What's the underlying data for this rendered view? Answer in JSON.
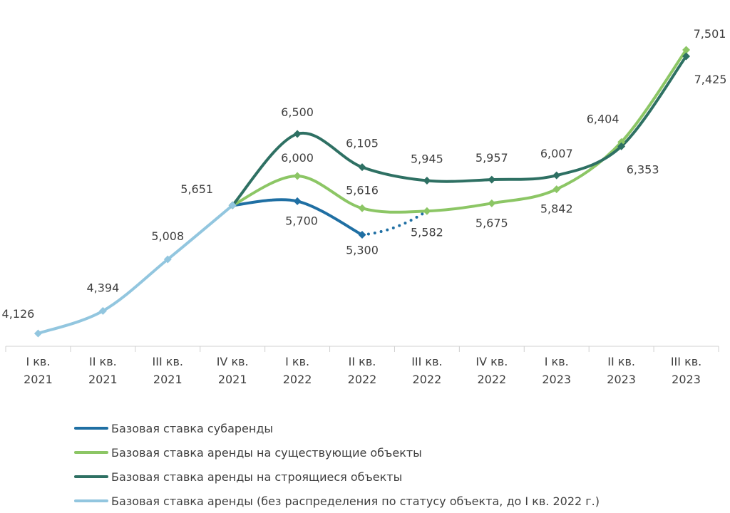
{
  "chart_data": {
    "type": "line",
    "categories": [
      [
        "I кв.",
        "2021"
      ],
      [
        "II кв.",
        "2021"
      ],
      [
        "III кв.",
        "2021"
      ],
      [
        "IV кв.",
        "2021"
      ],
      [
        "I кв.",
        "2022"
      ],
      [
        "II кв.",
        "2022"
      ],
      [
        "III кв.",
        "2022"
      ],
      [
        "IV кв.",
        "2022"
      ],
      [
        "I кв.",
        "2023"
      ],
      [
        "II кв.",
        "2023"
      ],
      [
        "III кв.",
        "2023"
      ]
    ],
    "ylim": [
      3900,
      7700
    ],
    "series": [
      {
        "name": "Базовая ставка аренды (без распределения по статусу объекта, до I кв. 2022 г.)",
        "color": "#92c6df",
        "values": [
          4126,
          4394,
          5008,
          5651,
          null,
          null,
          null,
          null,
          null,
          null,
          null
        ],
        "labels": [
          "4,126",
          "4,394",
          "5,008",
          "5,651",
          null,
          null,
          null,
          null,
          null,
          null,
          null
        ]
      },
      {
        "name": "Базовая ставка субаренды",
        "color": "#1f6fa3",
        "values": [
          null,
          null,
          null,
          5651,
          5700,
          5300,
          null,
          null,
          null,
          null,
          null
        ],
        "labels": [
          null,
          null,
          null,
          null,
          "5,700",
          "5,300",
          null,
          null,
          null,
          null,
          null
        ],
        "dotted_to": {
          "index": 6,
          "value": 5582
        }
      },
      {
        "name": "Базовая ставка аренды на существующие объекты",
        "color": "#8cc665",
        "values": [
          null,
          null,
          null,
          5651,
          6000,
          5616,
          5582,
          5675,
          5842,
          6404,
          7501
        ],
        "labels": [
          null,
          null,
          null,
          null,
          "6,000",
          "5,616",
          "5,582",
          "5,675",
          "5,842",
          "6,404",
          "7,501"
        ]
      },
      {
        "name": "Базовая ставка аренды на строящиеся объекты",
        "color": "#2e7063",
        "values": [
          null,
          null,
          null,
          5651,
          6500,
          6105,
          5945,
          5957,
          6007,
          6353,
          7425
        ],
        "labels": [
          null,
          null,
          null,
          null,
          "6,500",
          "6,105",
          "5,945",
          "5,957",
          "6,007",
          "6,353",
          "7,425"
        ]
      }
    ],
    "legend": [
      {
        "label": "Базовая ставка субаренды",
        "color": "#1f6fa3"
      },
      {
        "label": "Базовая ставка аренды на существующие объекты",
        "color": "#8cc665"
      },
      {
        "label": "Базовая ставка аренды на строящиеся объекты",
        "color": "#2e7063"
      },
      {
        "label": "Базовая ставка аренды (без распределения по статусу объекта, до I кв. 2022 г.)",
        "color": "#92c6df"
      }
    ]
  }
}
